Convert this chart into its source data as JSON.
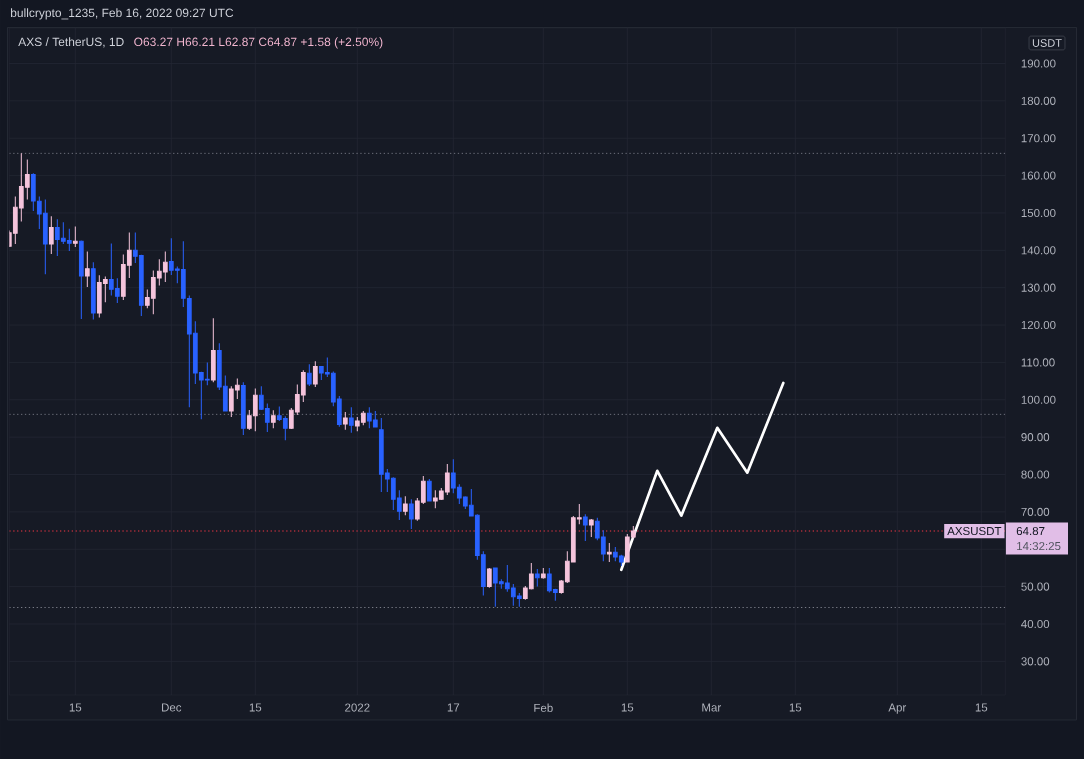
{
  "chart_data": {
    "type": "candlestick",
    "title": "AXS / TetherUS, 1D",
    "subtitle": "O63.27 H66.21 L62.87 C64.87 +1.58 (+2.50%)",
    "ylabel": "USDT",
    "annotations": [
      "bullcrypto_1235, Feb 16, 2022 09:27 UTC",
      "64.87",
      "14:32:25"
    ],
    "x": [
      "2021-11-04",
      "2021-11-05",
      "2021-11-06",
      "2021-11-07",
      "2021-11-08",
      "2021-11-09",
      "2021-11-10",
      "2021-11-11",
      "2021-11-12",
      "2021-11-13",
      "2021-11-14",
      "2021-11-15",
      "2021-11-16",
      "2021-11-17",
      "2021-11-18",
      "2021-11-19",
      "2021-11-20",
      "2021-11-21",
      "2021-11-22",
      "2021-11-23",
      "2021-11-24",
      "2021-11-25",
      "2021-11-26",
      "2021-11-27",
      "2021-11-28",
      "2021-11-29",
      "2021-11-30",
      "2021-12-01",
      "2021-12-02",
      "2021-12-03",
      "2021-12-04",
      "2021-12-05",
      "2021-12-06",
      "2021-12-07",
      "2021-12-08",
      "2021-12-09",
      "2021-12-10",
      "2021-12-11",
      "2021-12-12",
      "2021-12-13",
      "2021-12-14",
      "2021-12-15",
      "2021-12-16",
      "2021-12-17",
      "2021-12-18",
      "2021-12-19",
      "2021-12-20",
      "2021-12-21",
      "2021-12-22",
      "2021-12-23",
      "2021-12-24",
      "2021-12-25",
      "2021-12-26",
      "2021-12-27",
      "2021-12-28",
      "2021-12-29",
      "2021-12-30",
      "2021-12-31",
      "2022-01-01",
      "2022-01-02",
      "2022-01-03",
      "2022-01-04",
      "2022-01-05",
      "2022-01-06",
      "2022-01-07",
      "2022-01-08",
      "2022-01-09",
      "2022-01-10",
      "2022-01-11",
      "2022-01-12",
      "2022-01-13",
      "2022-01-14",
      "2022-01-15",
      "2022-01-16",
      "2022-01-17",
      "2022-01-18",
      "2022-01-19",
      "2022-01-20",
      "2022-01-21",
      "2022-01-22",
      "2022-01-23",
      "2022-01-24",
      "2022-01-25",
      "2022-01-26",
      "2022-01-27",
      "2022-01-28",
      "2022-01-29",
      "2022-01-30",
      "2022-01-31",
      "2022-02-01",
      "2022-02-02",
      "2022-02-03",
      "2022-02-04",
      "2022-02-05",
      "2022-02-06",
      "2022-02-07",
      "2022-02-08",
      "2022-02-09",
      "2022-02-10",
      "2022-02-11",
      "2022-02-12",
      "2022-02-13",
      "2022-02-14",
      "2022-02-15",
      "2022-02-16"
    ],
    "ohlc": [
      [
        141.1,
        145.3,
        140.9,
        144.7
      ],
      [
        144.6,
        154.4,
        141.7,
        151.5
      ],
      [
        151.3,
        166.0,
        147.7,
        157.1
      ],
      [
        156.9,
        164.3,
        153.6,
        160.3
      ],
      [
        160.3,
        160.6,
        150.5,
        153.2
      ],
      [
        153.1,
        154.4,
        145.7,
        149.7
      ],
      [
        149.9,
        153.6,
        133.6,
        141.7
      ],
      [
        141.7,
        149.1,
        139.0,
        146.1
      ],
      [
        146.1,
        148.3,
        138.5,
        142.9
      ],
      [
        143.2,
        147.5,
        141.7,
        142.4
      ],
      [
        142.6,
        145.8,
        139.8,
        141.9
      ],
      [
        141.9,
        146.4,
        140.9,
        142.4
      ],
      [
        142.4,
        142.6,
        121.6,
        133.1
      ],
      [
        133.1,
        139.7,
        130.2,
        135.1
      ],
      [
        135.1,
        136.8,
        121.5,
        123.2
      ],
      [
        123.2,
        133.3,
        122.0,
        131.4
      ],
      [
        131.1,
        133.0,
        126.1,
        132.2
      ],
      [
        132.2,
        141.8,
        127.9,
        129.6
      ],
      [
        129.8,
        132.5,
        125.9,
        127.7
      ],
      [
        127.7,
        138.9,
        126.7,
        136.2
      ],
      [
        136.0,
        144.8,
        132.6,
        140.0
      ],
      [
        140.0,
        144.8,
        136.6,
        138.4
      ],
      [
        138.6,
        138.8,
        122.4,
        125.3
      ],
      [
        125.3,
        129.5,
        124.5,
        127.4
      ],
      [
        127.2,
        134.6,
        122.9,
        132.7
      ],
      [
        132.6,
        137.6,
        130.6,
        134.4
      ],
      [
        134.2,
        139.7,
        131.5,
        136.8
      ],
      [
        137.0,
        143.2,
        133.4,
        134.7
      ],
      [
        135.0,
        135.7,
        131.2,
        134.7
      ],
      [
        134.9,
        142.4,
        124.8,
        127.2
      ],
      [
        127.1,
        127.9,
        98.0,
        117.6
      ],
      [
        117.8,
        121.0,
        104.2,
        107.2
      ],
      [
        107.3,
        107.5,
        94.8,
        105.3
      ],
      [
        105.5,
        110.0,
        103.9,
        105.3
      ],
      [
        105.3,
        121.8,
        104.7,
        113.2
      ],
      [
        113.2,
        115.1,
        102.6,
        103.4
      ],
      [
        103.6,
        106.5,
        96.9,
        97.0
      ],
      [
        97.0,
        103.6,
        95.4,
        102.9
      ],
      [
        102.6,
        105.7,
        100.2,
        103.9
      ],
      [
        103.8,
        104.7,
        90.6,
        92.4
      ],
      [
        92.4,
        97.3,
        91.9,
        95.7
      ],
      [
        95.7,
        103.0,
        91.6,
        101.2
      ],
      [
        101.2,
        103.6,
        97.3,
        97.5
      ],
      [
        97.7,
        99.0,
        91.4,
        94.0
      ],
      [
        94.0,
        97.2,
        92.4,
        95.7
      ],
      [
        95.7,
        98.2,
        94.3,
        94.7
      ],
      [
        95.0,
        95.6,
        89.2,
        92.4
      ],
      [
        92.4,
        97.8,
        92.2,
        97.2
      ],
      [
        96.7,
        104.1,
        95.9,
        101.4
      ],
      [
        101.3,
        107.9,
        99.4,
        107.3
      ],
      [
        107.1,
        109.5,
        103.7,
        104.2
      ],
      [
        104.2,
        110.3,
        103.4,
        108.9
      ],
      [
        108.9,
        109.0,
        105.3,
        107.2
      ],
      [
        107.3,
        111.3,
        106.1,
        106.9
      ],
      [
        107.1,
        107.6,
        98.3,
        99.4
      ],
      [
        100.2,
        101.0,
        92.8,
        93.4
      ],
      [
        93.5,
        96.7,
        92.0,
        95.1
      ],
      [
        95.1,
        98.0,
        91.2,
        93.2
      ],
      [
        93.0,
        95.4,
        91.6,
        94.3
      ],
      [
        94.0,
        97.0,
        93.2,
        96.4
      ],
      [
        96.4,
        98.0,
        92.4,
        94.3
      ],
      [
        94.6,
        97.0,
        92.6,
        92.7
      ],
      [
        92.0,
        95.1,
        75.3,
        80.1
      ],
      [
        80.4,
        81.5,
        75.3,
        78.8
      ],
      [
        79.0,
        79.3,
        70.5,
        73.4
      ],
      [
        73.7,
        75.8,
        67.8,
        70.2
      ],
      [
        70.2,
        74.2,
        69.1,
        72.1
      ],
      [
        72.1,
        73.4,
        65.4,
        68.1
      ],
      [
        68.1,
        73.7,
        67.6,
        72.9
      ],
      [
        72.6,
        79.6,
        72.1,
        78.2
      ],
      [
        78.2,
        78.8,
        72.8,
        72.9
      ],
      [
        72.9,
        75.8,
        71.0,
        73.7
      ],
      [
        73.4,
        76.4,
        73.2,
        75.6
      ],
      [
        75.3,
        82.8,
        74.5,
        80.4
      ],
      [
        80.4,
        84.1,
        75.0,
        76.4
      ],
      [
        76.6,
        77.4,
        72.1,
        73.7
      ],
      [
        74.0,
        74.2,
        70.8,
        71.6
      ],
      [
        71.8,
        76.1,
        68.8,
        68.9
      ],
      [
        69.1,
        69.4,
        57.2,
        58.3
      ],
      [
        58.5,
        59.5,
        47.6,
        50.0
      ],
      [
        50.0,
        55.0,
        49.7,
        54.7
      ],
      [
        55.0,
        55.1,
        44.6,
        51.0
      ],
      [
        51.3,
        52.0,
        49.4,
        50.8
      ],
      [
        51.0,
        55.8,
        48.6,
        49.4
      ],
      [
        49.6,
        50.7,
        44.9,
        47.3
      ],
      [
        47.5,
        48.3,
        44.6,
        46.8
      ],
      [
        46.8,
        50.2,
        46.5,
        49.6
      ],
      [
        49.4,
        56.3,
        49.2,
        53.4
      ],
      [
        53.4,
        54.7,
        50.0,
        52.4
      ],
      [
        52.4,
        55.0,
        52.1,
        53.4
      ],
      [
        53.4,
        55.0,
        48.4,
        48.9
      ],
      [
        49.2,
        49.4,
        46.2,
        48.4
      ],
      [
        48.4,
        51.8,
        48.1,
        51.5
      ],
      [
        51.3,
        59.5,
        51.0,
        56.8
      ],
      [
        56.6,
        68.9,
        56.5,
        68.4
      ],
      [
        68.1,
        72.1,
        66.7,
        68.4
      ],
      [
        68.6,
        69.4,
        62.2,
        66.5
      ],
      [
        66.5,
        68.1,
        63.3,
        67.8
      ],
      [
        67.5,
        68.4,
        62.4,
        63.0
      ],
      [
        63.3,
        65.1,
        56.8,
        58.7
      ],
      [
        58.7,
        61.7,
        56.6,
        59.2
      ],
      [
        59.2,
        60.6,
        56.8,
        57.9
      ],
      [
        58.2,
        58.5,
        55.5,
        56.6
      ],
      [
        56.6,
        64.1,
        56.5,
        63.3
      ],
      [
        63.27,
        66.21,
        62.87,
        64.87
      ]
    ],
    "colors": [
      "#f5c4dc",
      "#f5c4dc",
      "#f5c4dc",
      "#f5c4dc",
      "#2962ff",
      "#2962ff",
      "#2962ff",
      "#f5c4dc",
      "#2962ff",
      "#2962ff",
      "#2962ff",
      "#f5c4dc",
      "#2962ff",
      "#f5c4dc",
      "#2962ff",
      "#f5c4dc",
      "#f5c4dc",
      "#2962ff",
      "#2962ff",
      "#f5c4dc",
      "#f5c4dc",
      "#2962ff",
      "#2962ff",
      "#f5c4dc",
      "#f5c4dc",
      "#f5c4dc",
      "#f5c4dc",
      "#2962ff",
      "#2962ff",
      "#2962ff",
      "#2962ff",
      "#2962ff",
      "#2962ff",
      "#2962ff",
      "#f5c4dc",
      "#2962ff",
      "#2962ff",
      "#f5c4dc",
      "#f5c4dc",
      "#2962ff",
      "#f5c4dc",
      "#f5c4dc",
      "#2962ff",
      "#2962ff",
      "#f5c4dc",
      "#2962ff",
      "#2962ff",
      "#f5c4dc",
      "#f5c4dc",
      "#f5c4dc",
      "#2962ff",
      "#f5c4dc",
      "#2962ff",
      "#2962ff",
      "#2962ff",
      "#2962ff",
      "#f5c4dc",
      "#2962ff",
      "#f5c4dc",
      "#f5c4dc",
      "#2962ff",
      "#2962ff",
      "#2962ff",
      "#2962ff",
      "#2962ff",
      "#2962ff",
      "#f5c4dc",
      "#2962ff",
      "#f5c4dc",
      "#f5c4dc",
      "#2962ff",
      "#f5c4dc",
      "#f5c4dc",
      "#f5c4dc",
      "#2962ff",
      "#2962ff",
      "#2962ff",
      "#2962ff",
      "#2962ff",
      "#2962ff",
      "#f5c4dc",
      "#2962ff",
      "#2962ff",
      "#2962ff",
      "#2962ff",
      "#2962ff",
      "#f5c4dc",
      "#f5c4dc",
      "#2962ff",
      "#f5c4dc",
      "#2962ff",
      "#2962ff",
      "#f5c4dc",
      "#f5c4dc",
      "#f5c4dc",
      "#f5c4dc",
      "#2962ff",
      "#f5c4dc",
      "#2962ff",
      "#2962ff",
      "#f5c4dc",
      "#2962ff",
      "#2962ff",
      "#f5c4dc",
      "#f5c4dc"
    ],
    "series": [
      {
        "type": "line",
        "color": "#ffffff",
        "x": [
          "2022-02-14",
          "2022-02-20",
          "2022-02-24",
          "2022-03-02",
          "2022-03-07",
          "2022-03-13"
        ],
        "values": [
          54.5,
          81,
          69,
          92.5,
          80.5,
          104.5
        ]
      }
    ],
    "xlim": [
      "2021-11-04",
      "2022-04-19"
    ],
    "xticks": [
      {
        "value": "2021-11-15",
        "label": "15"
      },
      {
        "value": "2021-12-01",
        "label": "Dec"
      },
      {
        "value": "2021-12-15",
        "label": "15"
      },
      {
        "value": "2022-01-01",
        "label": "2022"
      },
      {
        "value": "2022-01-17",
        "label": "17"
      },
      {
        "value": "2022-02-01",
        "label": "Feb"
      },
      {
        "value": "2022-02-15",
        "label": "15"
      },
      {
        "value": "2022-03-01",
        "label": "Mar"
      },
      {
        "value": "2022-03-15",
        "label": "15"
      },
      {
        "value": "2022-04-01",
        "label": "Apr"
      },
      {
        "value": "2022-04-15",
        "label": "15"
      }
    ],
    "ylim": [
      21,
      199.5
    ],
    "yticks": [
      {
        "value": 30,
        "label": "30.00"
      },
      {
        "value": 40,
        "label": "40.00"
      },
      {
        "value": 50,
        "label": "50.00"
      },
      {
        "value": 60,
        "label": null
      },
      {
        "value": 70,
        "label": "70.00"
      },
      {
        "value": 80,
        "label": "80.00"
      },
      {
        "value": 90,
        "label": "90.00"
      },
      {
        "value": 100,
        "label": "100.00"
      },
      {
        "value": 110,
        "label": "110.00"
      },
      {
        "value": 120,
        "label": "120.00"
      },
      {
        "value": 130,
        "label": "130.00"
      },
      {
        "value": 140,
        "label": "140.00"
      },
      {
        "value": 150,
        "label": "150.00"
      },
      {
        "value": 160,
        "label": "160.00"
      },
      {
        "value": 170,
        "label": "170.00"
      },
      {
        "value": 180,
        "label": "180.00"
      },
      {
        "value": 190,
        "label": "190.00"
      }
    ],
    "grid": true,
    "ref_lines": [
      {
        "axis": "y",
        "value": 166,
        "color": "#787b86",
        "line_style": "dotted"
      },
      {
        "axis": "y",
        "value": 96.1,
        "color": "#787b86",
        "line_style": "dotted"
      },
      {
        "axis": "y",
        "value": 64.87,
        "label": "AXSUSDT",
        "color": "#f23645",
        "line_style": "dotted"
      },
      {
        "axis": "y",
        "value": 44.4,
        "color": "#787b86",
        "line_style": "dotted"
      }
    ]
  }
}
